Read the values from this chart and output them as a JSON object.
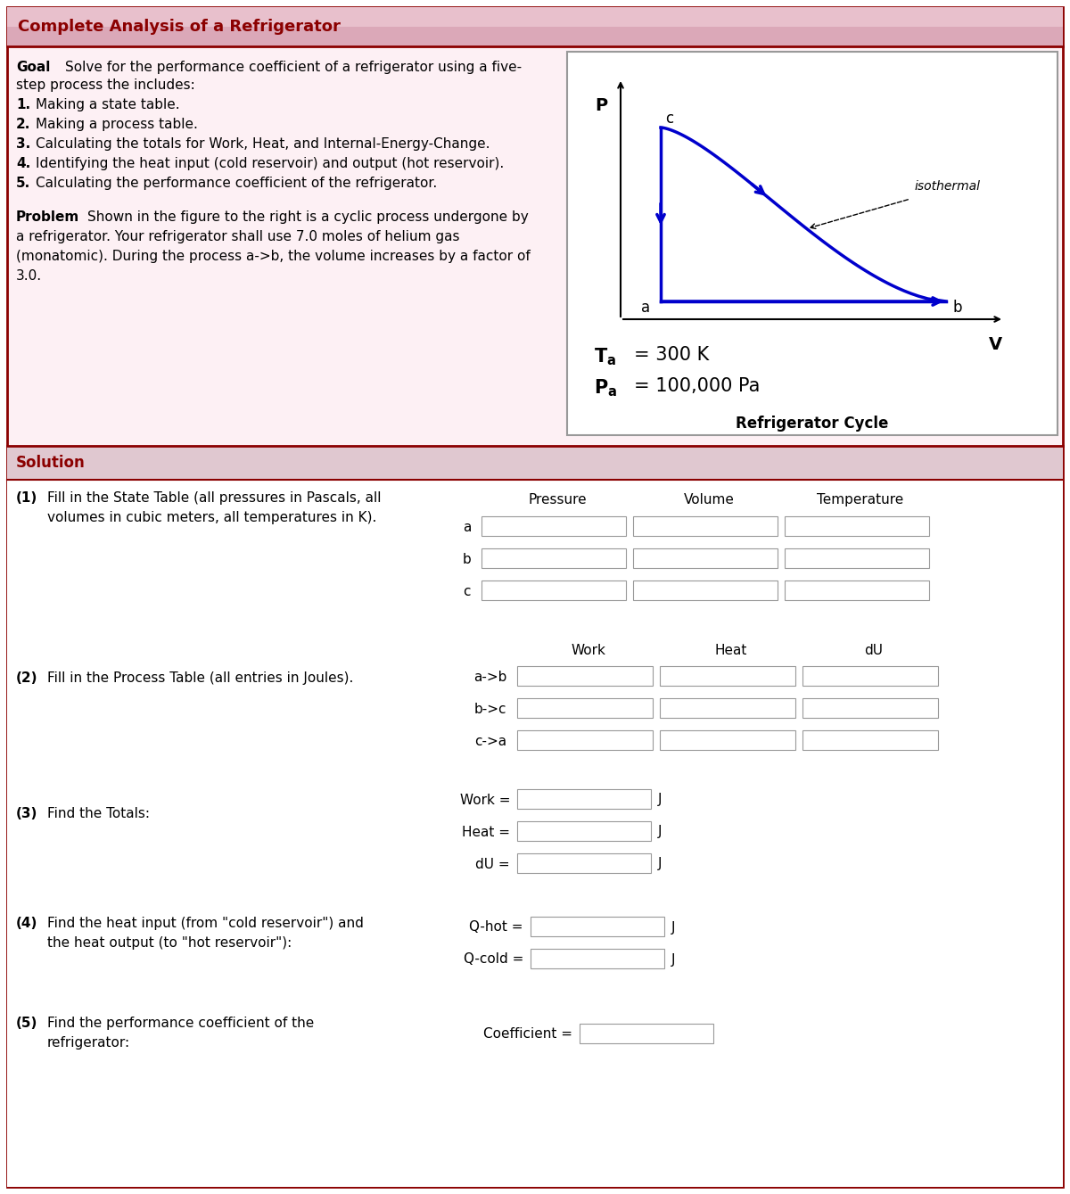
{
  "title": "Complete Analysis of a Refrigerator",
  "title_fg": "#8b0000",
  "outer_border_color": "#8b0000",
  "arrow_color": "#0000cc",
  "step1_cols": [
    "Pressure",
    "Volume",
    "Temperature"
  ],
  "step1_rows": [
    "a",
    "b",
    "c"
  ],
  "step2_cols": [
    "Work",
    "Heat",
    "dU"
  ],
  "step2_rows": [
    "a->b",
    "b->c",
    "c->a"
  ],
  "step3_items": [
    "Work =",
    "Heat =",
    "dU ="
  ],
  "step4_items": [
    "Q-hot =",
    "Q-cold ="
  ],
  "step5_item": "Coefficient ="
}
